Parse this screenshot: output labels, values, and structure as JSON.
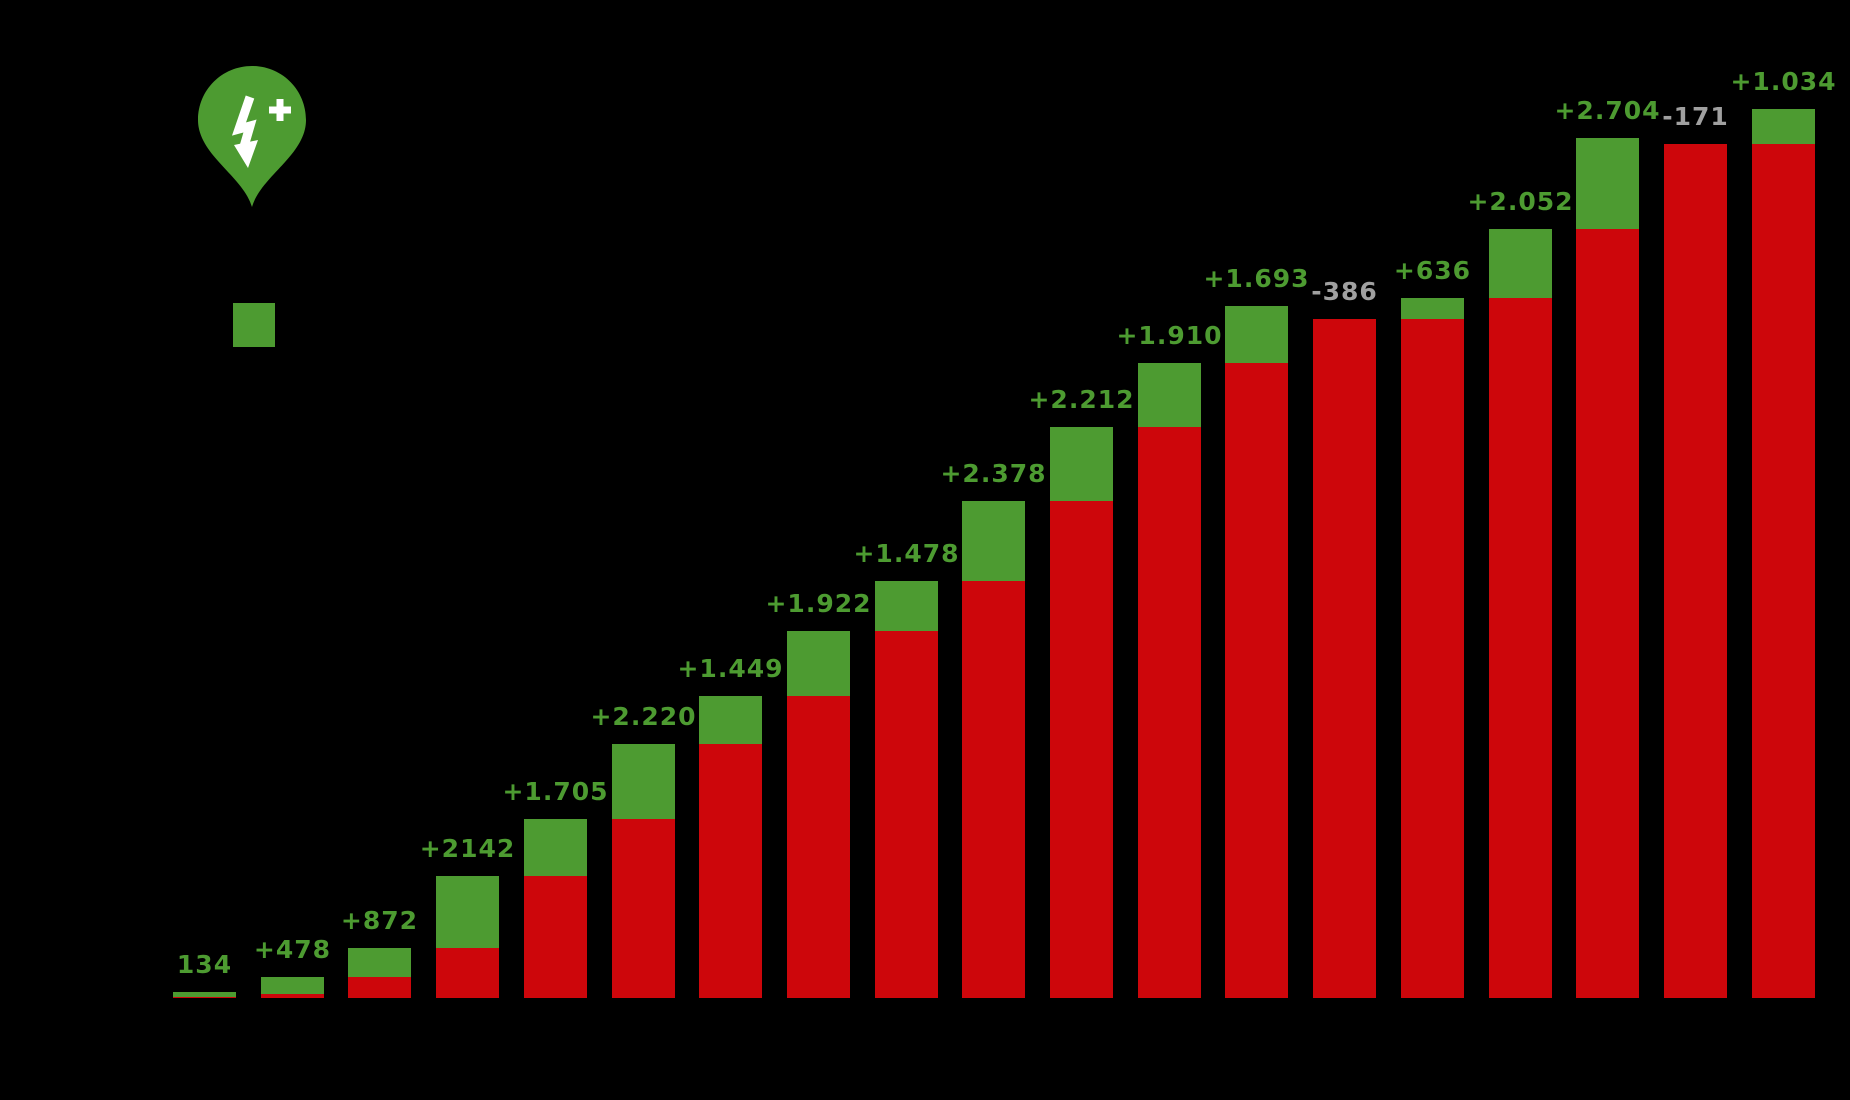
{
  "page": {
    "background_color": "#000000"
  },
  "branding": {
    "icon": "map-pin-with-lightning-bolt-and-plus",
    "pin_color": "#4d9b31",
    "glyph_color": "#ffffff"
  },
  "legend": {
    "swatch_color": "#4d9b31",
    "position": "top-left"
  },
  "chart_data": {
    "type": "bar",
    "subtype": "stacked cumulative (waterfall-style: red base = previous cumulative total, green top = yearly addition)",
    "title": "",
    "xlabel": "",
    "ylabel": "",
    "ylim": [
      0,
      27000
    ],
    "grid": false,
    "legend_position": "top-left",
    "colors": {
      "base_segment": "#cd060b",
      "delta_segment": "#4d9b31",
      "label_positive": "#4d9b31",
      "label_negative": "#a0a0a0"
    },
    "n_bars": 19,
    "bars": [
      {
        "label": "134",
        "delta": 134,
        "cumulative_total": 134,
        "label_color": "green"
      },
      {
        "label": "+478",
        "delta": 478,
        "cumulative_total": 612,
        "label_color": "green"
      },
      {
        "label": "+872",
        "delta": 872,
        "cumulative_total": 1484,
        "label_color": "green"
      },
      {
        "label": "+2142",
        "delta": 2142,
        "cumulative_total": 3626,
        "label_color": "green"
      },
      {
        "label": "+1.705",
        "delta": 1705,
        "cumulative_total": 5331,
        "label_color": "green"
      },
      {
        "label": "+2.220",
        "delta": 2220,
        "cumulative_total": 7551,
        "label_color": "green"
      },
      {
        "label": "+1.449",
        "delta": 1449,
        "cumulative_total": 9000,
        "label_color": "green"
      },
      {
        "label": "+1.922",
        "delta": 1922,
        "cumulative_total": 10922,
        "label_color": "green"
      },
      {
        "label": "+1.478",
        "delta": 1478,
        "cumulative_total": 12400,
        "label_color": "green"
      },
      {
        "label": "+2.378",
        "delta": 2378,
        "cumulative_total": 14778,
        "label_color": "green"
      },
      {
        "label": "+2.212",
        "delta": 2212,
        "cumulative_total": 16990,
        "label_color": "green"
      },
      {
        "label": "+1.910",
        "delta": 1910,
        "cumulative_total": 18900,
        "label_color": "green"
      },
      {
        "label": "+1.693",
        "delta": 1693,
        "cumulative_total": 20593,
        "label_color": "green"
      },
      {
        "label": "-386",
        "delta": -386,
        "cumulative_total": 20207,
        "label_color": "gray"
      },
      {
        "label": "+636",
        "delta": 636,
        "cumulative_total": 20843,
        "label_color": "green"
      },
      {
        "label": "+2.052",
        "delta": 2052,
        "cumulative_total": 22895,
        "label_color": "green"
      },
      {
        "label": "+2.704",
        "delta": 2704,
        "cumulative_total": 25599,
        "label_color": "green"
      },
      {
        "label": "-171",
        "delta": -171,
        "cumulative_total": 25428,
        "label_color": "gray"
      },
      {
        "label": "+1.034",
        "delta": 1034,
        "cumulative_total": 26462,
        "label_color": "green"
      }
    ]
  }
}
